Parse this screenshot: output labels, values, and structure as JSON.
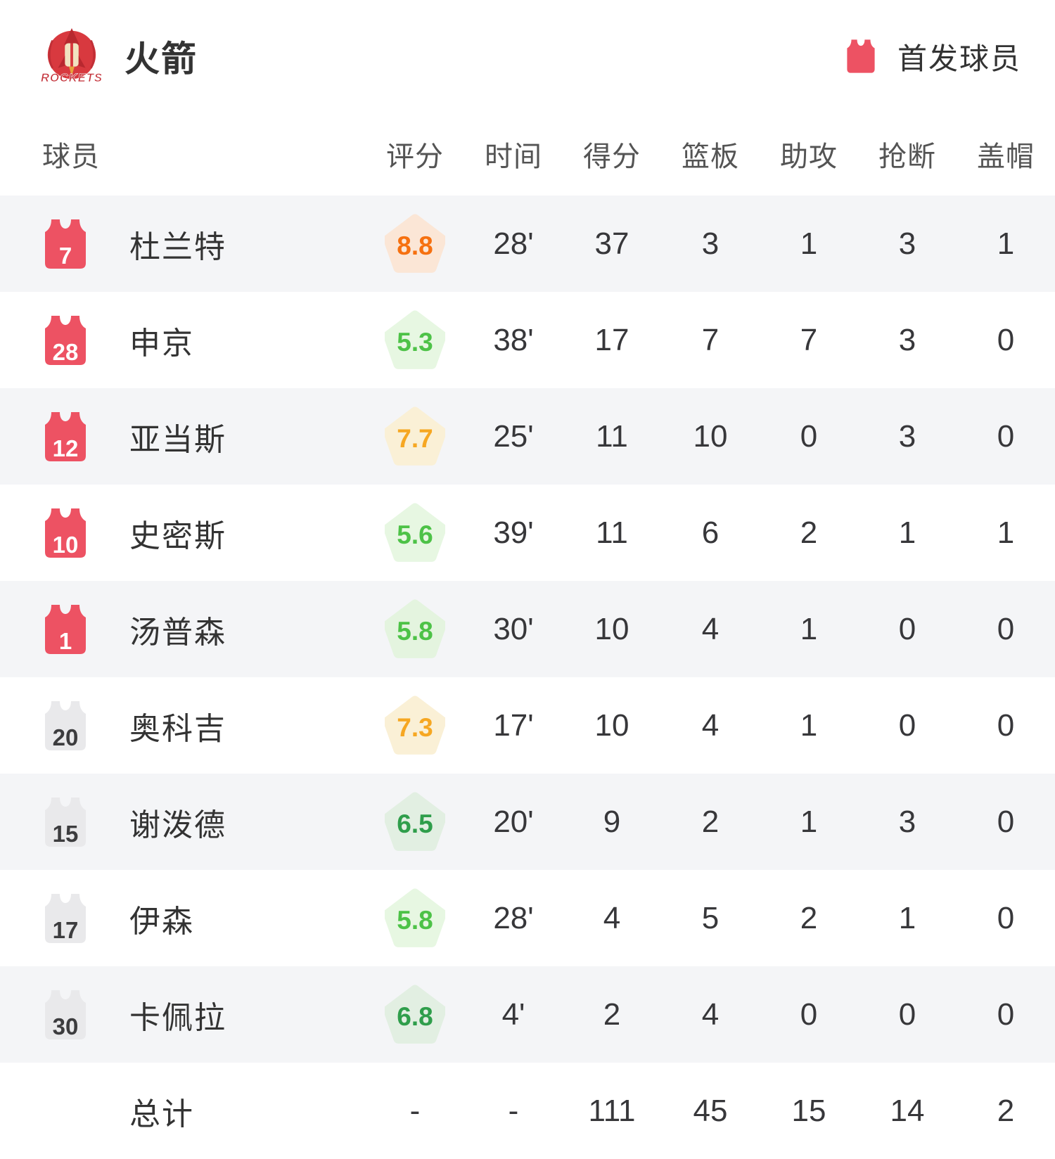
{
  "header": {
    "team_name": "火箭",
    "team_logo_text": "ROCKETS",
    "legend_label": "首发球员"
  },
  "colors": {
    "accent_red": "#ed5263",
    "bench_gray": "#e9e9eb",
    "row_alt_bg": "#f4f5f7",
    "logo_red": "#d8393f"
  },
  "table": {
    "columns": [
      "球员",
      "评分",
      "时间",
      "得分",
      "篮板",
      "助攻",
      "抢断",
      "盖帽"
    ],
    "rows": [
      {
        "number": "7",
        "starter": true,
        "name": "杜兰特",
        "rating": "8.8",
        "rating_color": "#f6700f",
        "rating_bg": "#fbe6d6",
        "time": "28'",
        "points": "37",
        "rebounds": "3",
        "assists": "1",
        "steals": "3",
        "blocks": "1"
      },
      {
        "number": "28",
        "starter": true,
        "name": "申京",
        "rating": "5.3",
        "rating_color": "#4dc247",
        "rating_bg": "#e7f7e2",
        "time": "38'",
        "points": "17",
        "rebounds": "7",
        "assists": "7",
        "steals": "3",
        "blocks": "0"
      },
      {
        "number": "12",
        "starter": true,
        "name": "亚当斯",
        "rating": "7.7",
        "rating_color": "#f6a722",
        "rating_bg": "#faf0d6",
        "time": "25'",
        "points": "11",
        "rebounds": "10",
        "assists": "0",
        "steals": "3",
        "blocks": "0"
      },
      {
        "number": "10",
        "starter": true,
        "name": "史密斯",
        "rating": "5.6",
        "rating_color": "#4dc247",
        "rating_bg": "#e7f7e2",
        "time": "39'",
        "points": "11",
        "rebounds": "6",
        "assists": "2",
        "steals": "1",
        "blocks": "1"
      },
      {
        "number": "1",
        "starter": true,
        "name": "汤普森",
        "rating": "5.8",
        "rating_color": "#4dc247",
        "rating_bg": "#e4f4df",
        "time": "30'",
        "points": "10",
        "rebounds": "4",
        "assists": "1",
        "steals": "0",
        "blocks": "0"
      },
      {
        "number": "20",
        "starter": false,
        "name": "奥科吉",
        "rating": "7.3",
        "rating_color": "#f6a722",
        "rating_bg": "#faf0d6",
        "time": "17'",
        "points": "10",
        "rebounds": "4",
        "assists": "1",
        "steals": "0",
        "blocks": "0"
      },
      {
        "number": "15",
        "starter": false,
        "name": "谢泼德",
        "rating": "6.5",
        "rating_color": "#2f9e4b",
        "rating_bg": "#e2efe2",
        "time": "20'",
        "points": "9",
        "rebounds": "2",
        "assists": "1",
        "steals": "3",
        "blocks": "0"
      },
      {
        "number": "17",
        "starter": false,
        "name": "伊森",
        "rating": "5.8",
        "rating_color": "#4dc247",
        "rating_bg": "#e7f7e2",
        "time": "28'",
        "points": "4",
        "rebounds": "5",
        "assists": "2",
        "steals": "1",
        "blocks": "0"
      },
      {
        "number": "30",
        "starter": false,
        "name": "卡佩拉",
        "rating": "6.8",
        "rating_color": "#2f9e4b",
        "rating_bg": "#e2efe2",
        "time": "4'",
        "points": "2",
        "rebounds": "4",
        "assists": "0",
        "steals": "0",
        "blocks": "0"
      }
    ],
    "total": {
      "label": "总计",
      "rating": "-",
      "time": "-",
      "points": "111",
      "rebounds": "45",
      "assists": "15",
      "steals": "14",
      "blocks": "2"
    }
  }
}
